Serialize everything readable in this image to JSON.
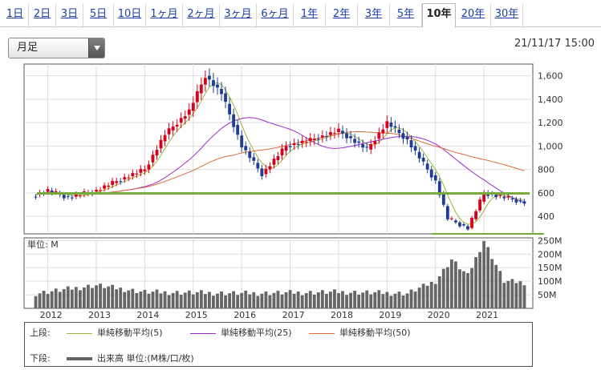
{
  "tabs": [
    {
      "label": "1日"
    },
    {
      "label": "2日"
    },
    {
      "label": "3日"
    },
    {
      "label": "5日"
    },
    {
      "label": "10日"
    },
    {
      "label": "1ヶ月"
    },
    {
      "label": "2ヶ月"
    },
    {
      "label": "3ヶ月"
    },
    {
      "label": "6ヶ月"
    },
    {
      "label": "1年"
    },
    {
      "label": "2年"
    },
    {
      "label": "3年"
    },
    {
      "label": "5年"
    },
    {
      "label": "10年"
    },
    {
      "label": "20年"
    },
    {
      "label": "30年"
    }
  ],
  "active_tab": "10年",
  "period_select": {
    "value": "月足"
  },
  "timestamp": "21/11/17 15:00",
  "colors": {
    "up": "#d9001b",
    "down": "#1f3c96",
    "ma5": "#9bb63c",
    "ma25": "#9a2ed0",
    "ma50": "#e06a3a",
    "support": "#77aa3a",
    "volume": "#666666"
  },
  "price_axis": {
    "ticks": [
      "1,600",
      "1,400",
      "1,200",
      "1,000",
      "800",
      "600",
      "400"
    ]
  },
  "volume_axis": {
    "unit_label": "単位: M",
    "ticks": [
      "250M",
      "200M",
      "150M",
      "100M",
      "50M"
    ]
  },
  "x_axis": {
    "ticks": [
      "2012",
      "2013",
      "2014",
      "2015",
      "2016",
      "2017",
      "2018",
      "2019",
      "2020",
      "2021"
    ]
  },
  "legend": {
    "upper_label": "上段:",
    "lower_label": "下段:",
    "ma5": "単純移動平均(5)",
    "ma25": "単純移動平均(25)",
    "ma50": "単純移動平均(50)",
    "volume": "出来高 単位:(M株/口/枚)"
  },
  "chart_data": {
    "type": "candlestick",
    "x_range": [
      "2011-10",
      "2021-11"
    ],
    "price_ylim": [
      250,
      1700
    ],
    "volume_ylim": [
      0,
      260
    ],
    "price_hlines": [
      595,
      250
    ],
    "price_anchor_points": [
      {
        "date": "2011-10",
        "price": 585
      },
      {
        "date": "2012-01",
        "price": 620
      },
      {
        "date": "2012-06",
        "price": 560
      },
      {
        "date": "2013-01",
        "price": 620
      },
      {
        "date": "2013-06",
        "price": 700
      },
      {
        "date": "2014-01",
        "price": 800
      },
      {
        "date": "2014-06",
        "price": 1100
      },
      {
        "date": "2014-12",
        "price": 1300
      },
      {
        "date": "2015-04",
        "price": 1600
      },
      {
        "date": "2015-08",
        "price": 1450
      },
      {
        "date": "2016-01",
        "price": 1000
      },
      {
        "date": "2016-06",
        "price": 760
      },
      {
        "date": "2016-12",
        "price": 1000
      },
      {
        "date": "2017-06",
        "price": 1050
      },
      {
        "date": "2018-01",
        "price": 1130
      },
      {
        "date": "2018-08",
        "price": 970
      },
      {
        "date": "2019-01",
        "price": 1200
      },
      {
        "date": "2019-06",
        "price": 1050
      },
      {
        "date": "2020-01",
        "price": 700
      },
      {
        "date": "2020-04",
        "price": 380
      },
      {
        "date": "2020-09",
        "price": 300
      },
      {
        "date": "2021-01",
        "price": 600
      },
      {
        "date": "2021-06",
        "price": 560
      },
      {
        "date": "2021-11",
        "price": 520
      }
    ],
    "volume_anchor_points": [
      {
        "date": "2011-10",
        "value": 55
      },
      {
        "date": "2013-01",
        "value": 85
      },
      {
        "date": "2014-01",
        "value": 60
      },
      {
        "date": "2016-01",
        "value": 55
      },
      {
        "date": "2018-01",
        "value": 60
      },
      {
        "date": "2019-06",
        "value": 55
      },
      {
        "date": "2020-01",
        "value": 100
      },
      {
        "date": "2020-05",
        "value": 180
      },
      {
        "date": "2020-09",
        "value": 120
      },
      {
        "date": "2021-01",
        "value": 250
      },
      {
        "date": "2021-06",
        "value": 100
      },
      {
        "date": "2021-11",
        "value": 95
      }
    ]
  }
}
